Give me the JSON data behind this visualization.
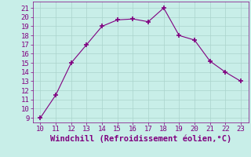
{
  "x": [
    10,
    11,
    12,
    13,
    14,
    15,
    16,
    17,
    18,
    19,
    20,
    21,
    22,
    23
  ],
  "y": [
    9,
    11.5,
    15,
    17,
    19,
    19.7,
    19.8,
    19.5,
    21,
    18,
    17.5,
    15.2,
    14,
    13
  ],
  "xlim": [
    9.5,
    23.5
  ],
  "ylim": [
    8.5,
    21.7
  ],
  "xticks": [
    10,
    11,
    12,
    13,
    14,
    15,
    16,
    17,
    18,
    19,
    20,
    21,
    22,
    23
  ],
  "yticks": [
    9,
    10,
    11,
    12,
    13,
    14,
    15,
    16,
    17,
    18,
    19,
    20,
    21
  ],
  "xlabel": "Windchill (Refroidissement éolien,°C)",
  "line_color": "#800080",
  "marker": "+",
  "marker_size": 4,
  "bg_color": "#c8eee8",
  "grid_color": "#aad4cc",
  "tick_label_size": 6.5,
  "xlabel_size": 7.5
}
